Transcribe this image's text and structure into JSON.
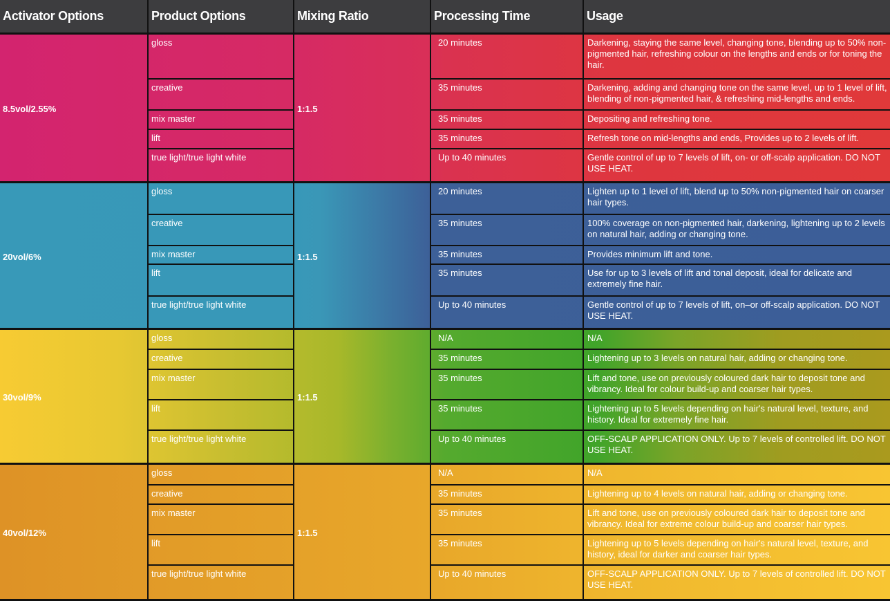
{
  "headers": [
    "Activator Options",
    "Product Options",
    "Mixing Ratio",
    "Processing Time",
    "Usage"
  ],
  "groups": [
    {
      "activator": "8.5vol/2.55%",
      "ratio": "1:1.5",
      "heights": [
        65,
        45,
        28,
        28,
        46
      ],
      "rows": [
        {
          "product": "gloss",
          "time": "20 minutes",
          "usage": "Darkening, staying the same level, changing tone, blending up to 50% non-pigmented hair, refreshing colour on the lengths and ends or for toning the hair."
        },
        {
          "product": "creative",
          "time": "35 minutes",
          "usage": "Darkening, adding and changing tone on the same level, up to 1 level of lift, blending of non-pigmented hair, & refreshing mid-lengths and ends."
        },
        {
          "product": "mix master",
          "time": "35 minutes",
          "usage": "Depositing and refreshing tone."
        },
        {
          "product": "lift",
          "time": "35 minutes",
          "usage": "Refresh tone on mid-lengths and ends, Provides up to 2 levels of lift."
        },
        {
          "product": "true light/true light white",
          "time": "Up to 40 minutes",
          "usage": "Gentle control of up to 7 levels of lift, on- or off-scalp application. DO NOT USE HEAT."
        }
      ]
    },
    {
      "activator": "20vol/6%",
      "ratio": "1:1.5",
      "heights": [
        46,
        45,
        27,
        46,
        45
      ],
      "rows": [
        {
          "product": "gloss",
          "time": "20 minutes",
          "usage": "Lighten up to 1 level of lift, blend up to 50% non-pigmented hair on coarser hair types."
        },
        {
          "product": "creative",
          "time": "35 minutes",
          "usage": "100% coverage on non-pigmented hair, darkening, lightening up to 2 levels on natural hair, adding or changing tone."
        },
        {
          "product": "mix master",
          "time": "35 minutes",
          "usage": "Provides minimum lift and tone."
        },
        {
          "product": "lift",
          "time": "35 minutes",
          "usage": "Use for up to 3 levels of lift and tonal deposit, ideal for delicate and extremely fine hair."
        },
        {
          "product": "true light/true light white",
          "time": "Up to 40 minutes",
          "usage": "Gentle control of up to 7 levels of lift, on–or off-scalp application. DO NOT USE HEAT."
        }
      ]
    },
    {
      "activator": "30vol/9%",
      "ratio": "1:1.5",
      "heights": [
        29,
        29,
        44,
        44,
        46
      ],
      "rows": [
        {
          "product": "gloss",
          "time": "N/A",
          "usage": "N/A"
        },
        {
          "product": "creative",
          "time": "35 minutes",
          "usage": "Lightening up to 3 levels on natural hair, adding or changing tone."
        },
        {
          "product": "mix master",
          "time": "35 minutes",
          "usage": "Lift and tone, use on previously coloured dark hair to deposit tone and vibrancy. Ideal for colour build-up and coarser hair types."
        },
        {
          "product": "lift",
          "time": "35 minutes",
          "usage": "Lightening up to 5 levels depending on hair's natural level, texture, and history. Ideal for extremely fine hair."
        },
        {
          "product": "true light/true light white",
          "time": "Up to 40 minutes",
          "usage": "OFF-SCALP APPLICATION ONLY. Up to 7 levels of controlled lift. DO NOT USE HEAT."
        }
      ]
    },
    {
      "activator": "40vol/12%",
      "ratio": "1:1.5",
      "heights": [
        30,
        28,
        44,
        44,
        48
      ],
      "rows": [
        {
          "product": "gloss",
          "time": "N/A",
          "usage": "N/A"
        },
        {
          "product": "creative",
          "time": "35 minutes",
          "usage": "Lightening up to 4 levels on natural hair, adding or changing tone."
        },
        {
          "product": "mix master",
          "time": "35 minutes",
          "usage": "Lift and tone, use on previously coloured dark hair to deposit tone and vibrancy. Ideal for extreme colour build-up and coarser hair types."
        },
        {
          "product": "lift",
          "time": "35 minutes",
          "usage": "Lightening up to 5 levels depending on hair's natural level, texture, and history, ideal for darker and coarser hair types."
        },
        {
          "product": "true light/true light white",
          "time": "Up to 40 minutes",
          "usage": "OFF-SCALP APPLICATION ONLY. Up to 7 levels of controlled lift. DO NOT USE HEAT."
        }
      ]
    }
  ]
}
